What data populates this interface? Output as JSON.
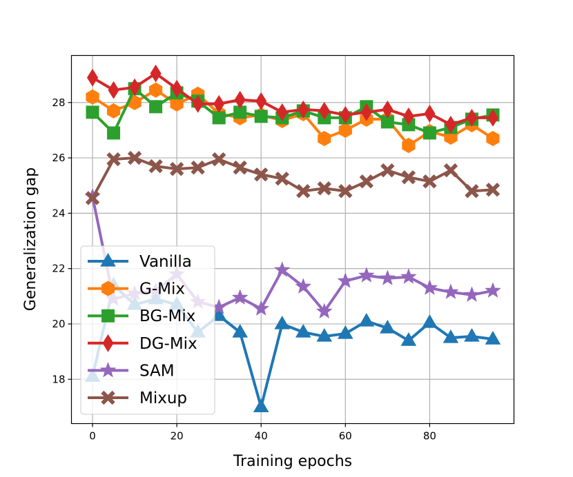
{
  "chart_data": {
    "type": "line",
    "title": "",
    "xlabel": "Training epochs",
    "ylabel": "Generalization gap",
    "xlim": [
      -5,
      100
    ],
    "ylim": [
      16.4,
      29.7
    ],
    "xticks": [
      0,
      20,
      40,
      60,
      80
    ],
    "yticks": [
      18,
      20,
      22,
      24,
      26,
      28
    ],
    "grid": true,
    "legend_position": "lower-left",
    "x": [
      0,
      5,
      10,
      15,
      20,
      25,
      30,
      35,
      40,
      45,
      50,
      55,
      60,
      65,
      70,
      75,
      80,
      85,
      90,
      95
    ],
    "series": [
      {
        "name": "Vanilla",
        "color": "#1f77b4",
        "marker": "triangle",
        "values": [
          18.1,
          21.4,
          20.7,
          20.9,
          20.7,
          19.7,
          20.3,
          19.7,
          17.0,
          20.0,
          19.7,
          19.55,
          19.65,
          20.1,
          19.85,
          19.4,
          20.05,
          19.5,
          19.55,
          19.45
        ]
      },
      {
        "name": "G-Mix",
        "color": "#ff7f0e",
        "marker": "hexagon",
        "values": [
          28.2,
          27.7,
          28.0,
          28.45,
          27.95,
          28.3,
          27.6,
          27.45,
          27.55,
          27.35,
          27.6,
          26.7,
          27.0,
          27.4,
          27.4,
          26.45,
          26.95,
          26.75,
          27.2,
          26.7
        ]
      },
      {
        "name": "BG-Mix",
        "color": "#2ca02c",
        "marker": "square",
        "values": [
          27.65,
          26.9,
          28.5,
          27.85,
          28.35,
          28.05,
          27.45,
          27.65,
          27.5,
          27.45,
          27.7,
          27.45,
          27.45,
          27.85,
          27.3,
          27.2,
          26.9,
          27.1,
          27.4,
          27.55
        ]
      },
      {
        "name": "DG-Mix",
        "color": "#d62728",
        "marker": "thin_diamond",
        "values": [
          28.9,
          28.45,
          28.55,
          29.05,
          28.5,
          27.95,
          27.95,
          28.1,
          28.05,
          27.65,
          27.75,
          27.7,
          27.55,
          27.65,
          27.75,
          27.5,
          27.6,
          27.2,
          27.45,
          27.45
        ]
      },
      {
        "name": "SAM",
        "color": "#9467bd",
        "marker": "star",
        "values": [
          24.6,
          20.9,
          21.1,
          21.2,
          21.8,
          20.8,
          20.6,
          20.95,
          20.55,
          21.95,
          21.35,
          20.45,
          21.55,
          21.75,
          21.65,
          21.7,
          21.3,
          21.15,
          21.05,
          21.2
        ]
      },
      {
        "name": "Mixup",
        "color": "#8c564b",
        "marker": "x-filled",
        "values": [
          24.55,
          25.95,
          26.0,
          25.7,
          25.6,
          25.65,
          25.95,
          25.65,
          25.4,
          25.25,
          24.8,
          24.9,
          24.8,
          25.15,
          25.55,
          25.3,
          25.15,
          25.55,
          24.8,
          24.85
        ]
      }
    ]
  }
}
